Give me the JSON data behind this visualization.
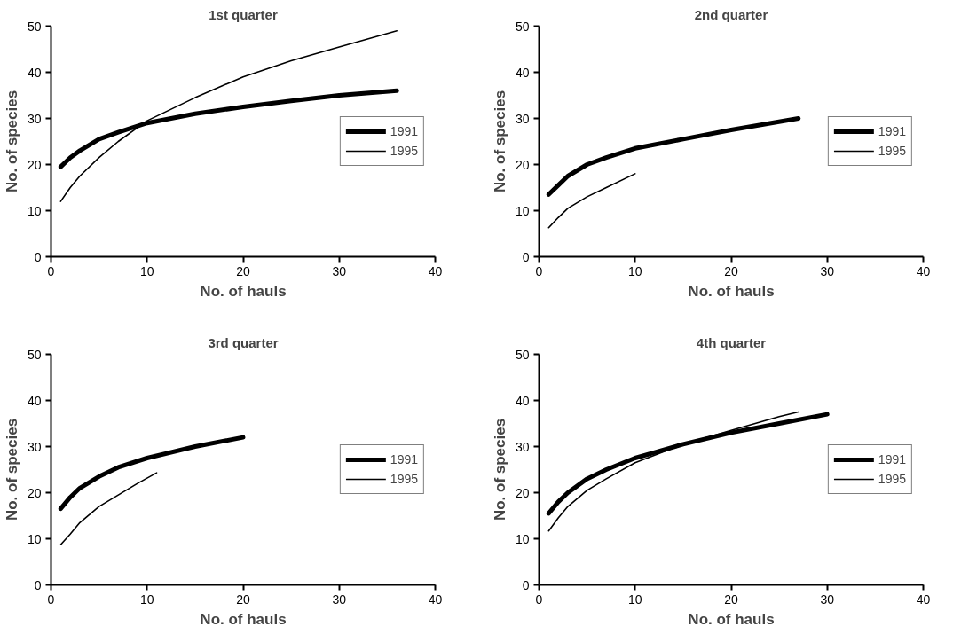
{
  "chart_data": [
    {
      "type": "line",
      "title": "1st quarter",
      "xlabel": "No. of hauls",
      "ylabel": "No. of species",
      "xlim": [
        0,
        40
      ],
      "ylim": [
        0,
        50
      ],
      "xticks": [
        0,
        10,
        20,
        30,
        40
      ],
      "yticks": [
        0,
        10,
        20,
        30,
        40,
        50
      ],
      "grid": false,
      "legend": "right",
      "marker": "none",
      "line_style": "solid",
      "series": [
        {
          "name": "1991",
          "color": "#000000",
          "x": [
            1,
            2,
            3,
            5,
            7,
            10,
            15,
            20,
            25,
            30,
            36
          ],
          "values": [
            19.5,
            21.5,
            23,
            25.5,
            27,
            29,
            31,
            32.5,
            33.8,
            35,
            36
          ]
        },
        {
          "name": "1995",
          "color": "#000000",
          "x": [
            1,
            2,
            3,
            5,
            7,
            10,
            15,
            20,
            25,
            30,
            36
          ],
          "values": [
            12,
            15,
            17.5,
            21.5,
            25,
            29.5,
            34.5,
            39,
            42.5,
            45.5,
            49
          ]
        }
      ]
    },
    {
      "type": "line",
      "title": "2nd quarter",
      "xlabel": "No. of hauls",
      "ylabel": "No. of species",
      "xlim": [
        0,
        40
      ],
      "ylim": [
        0,
        50
      ],
      "xticks": [
        0,
        10,
        20,
        30,
        40
      ],
      "yticks": [
        0,
        10,
        20,
        30,
        40,
        50
      ],
      "grid": false,
      "legend": "right",
      "marker": "none",
      "line_style": "solid",
      "series": [
        {
          "name": "1991",
          "color": "#000000",
          "x": [
            1,
            2,
            3,
            5,
            7,
            10,
            15,
            20,
            27
          ],
          "values": [
            13.5,
            15.5,
            17.5,
            20,
            21.5,
            23.5,
            25.5,
            27.5,
            30
          ]
        },
        {
          "name": "1995",
          "color": "#000000",
          "x": [
            1,
            2,
            3,
            5,
            7,
            10
          ],
          "values": [
            6.3,
            8.5,
            10.5,
            13,
            15,
            18
          ]
        }
      ]
    },
    {
      "type": "line",
      "title": "3rd quarter",
      "xlabel": "No. of hauls",
      "ylabel": "No. of species",
      "xlim": [
        0,
        40
      ],
      "ylim": [
        0,
        50
      ],
      "xticks": [
        0,
        10,
        20,
        30,
        40
      ],
      "yticks": [
        0,
        10,
        20,
        30,
        40,
        50
      ],
      "grid": false,
      "legend": "right",
      "marker": "none",
      "line_style": "solid",
      "series": [
        {
          "name": "1991",
          "color": "#000000",
          "x": [
            1,
            2,
            3,
            5,
            7,
            10,
            15,
            20
          ],
          "values": [
            16.5,
            19,
            21,
            23.5,
            25.5,
            27.5,
            30,
            32
          ]
        },
        {
          "name": "1995",
          "color": "#000000",
          "x": [
            1,
            2,
            3,
            5,
            7,
            9,
            11
          ],
          "values": [
            8.7,
            11,
            13.5,
            17,
            19.5,
            22,
            24.3
          ]
        }
      ]
    },
    {
      "type": "line",
      "title": "4th quarter",
      "xlabel": "No. of hauls",
      "ylabel": "No. of species",
      "xlim": [
        0,
        40
      ],
      "ylim": [
        0,
        50
      ],
      "xticks": [
        0,
        10,
        20,
        30,
        40
      ],
      "yticks": [
        0,
        10,
        20,
        30,
        40,
        50
      ],
      "grid": false,
      "legend": "right",
      "marker": "none",
      "line_style": "solid",
      "series": [
        {
          "name": "1991",
          "color": "#000000",
          "x": [
            1,
            2,
            3,
            5,
            7,
            10,
            15,
            20,
            25,
            30
          ],
          "values": [
            15.5,
            18,
            20,
            23,
            25,
            27.5,
            30.5,
            33,
            35,
            37
          ]
        },
        {
          "name": "1995",
          "color": "#000000",
          "x": [
            1,
            2,
            3,
            5,
            7,
            10,
            15,
            20,
            25,
            27
          ],
          "values": [
            11.7,
            14.5,
            17,
            20.5,
            23,
            26.5,
            30.5,
            33.5,
            36.5,
            37.5
          ]
        }
      ]
    }
  ]
}
